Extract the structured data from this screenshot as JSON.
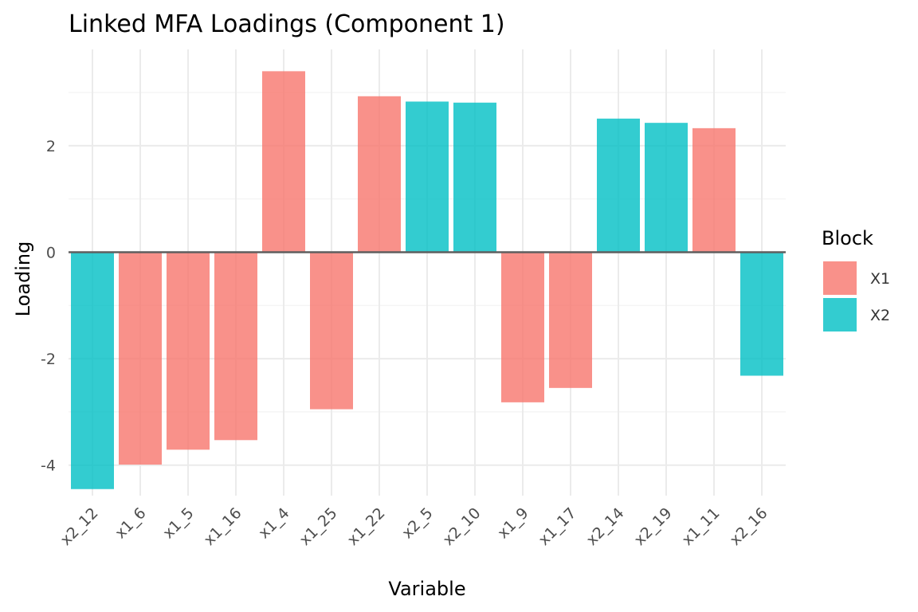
{
  "chart_data": {
    "type": "bar",
    "title": "Linked MFA Loadings (Component 1)",
    "xlabel": "Variable",
    "ylabel": "Loading",
    "categories": [
      "x2_12",
      "x1_6",
      "x1_5",
      "x1_16",
      "x1_4",
      "x1_25",
      "x1_22",
      "x2_5",
      "x2_10",
      "x1_9",
      "x1_17",
      "x2_14",
      "x2_19",
      "x1_11",
      "x2_16"
    ],
    "values": [
      -4.45,
      -3.99,
      -3.71,
      -3.53,
      3.4,
      -2.95,
      2.93,
      2.83,
      2.81,
      -2.82,
      -2.55,
      2.51,
      2.43,
      2.33,
      -2.32
    ],
    "blocks": [
      "X2",
      "X1",
      "X1",
      "X1",
      "X1",
      "X1",
      "X1",
      "X2",
      "X2",
      "X1",
      "X1",
      "X2",
      "X2",
      "X1",
      "X2"
    ],
    "ylim": [
      -4.75,
      3.85
    ],
    "yticks": [
      -4,
      -2,
      0,
      2
    ],
    "ytick_labels": [
      "-4",
      "-2",
      "0",
      "2"
    ],
    "grid": true,
    "legend": {
      "title": "Block",
      "placement": "right",
      "entries": [
        {
          "label": "X1",
          "color": "#f8766d"
        },
        {
          "label": "X2",
          "color": "#00bfc4"
        }
      ]
    }
  }
}
